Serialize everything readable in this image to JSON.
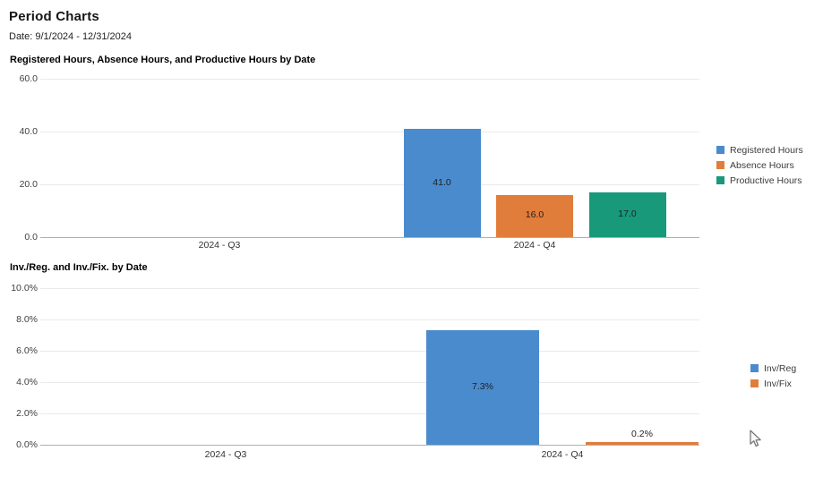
{
  "page": {
    "title": "Period Charts",
    "date_label": "Date: 9/1/2024 - 12/31/2024"
  },
  "cursor": {
    "icon": "arrow-pointer-icon"
  },
  "chart_data": [
    {
      "type": "bar",
      "title": "Registered Hours, Absence Hours, and Productive Hours by Date",
      "categories": [
        "2024 - Q3",
        "2024 - Q4"
      ],
      "series": [
        {
          "name": "Registered Hours",
          "color": "#4a8bce",
          "values": [
            0,
            41.0
          ],
          "labels": [
            "",
            "41.0"
          ]
        },
        {
          "name": "Absence Hours",
          "color": "#e17d3b",
          "values": [
            0,
            16.0
          ],
          "labels": [
            "",
            "16.0"
          ]
        },
        {
          "name": "Productive Hours",
          "color": "#17997a",
          "values": [
            0,
            17.0
          ],
          "labels": [
            "",
            "17.0"
          ]
        }
      ],
      "ylim": [
        0,
        60
      ],
      "yticks": [
        {
          "value": 0,
          "label": "0.0"
        },
        {
          "value": 20,
          "label": "20.0"
        },
        {
          "value": 40,
          "label": "40.0"
        },
        {
          "value": 60,
          "label": "60.0"
        }
      ],
      "grid": true,
      "legend_position": "right"
    },
    {
      "type": "bar",
      "title": "Inv./Reg. and Inv./Fix. by Date",
      "categories": [
        "2024 - Q3",
        "2024 - Q4"
      ],
      "series": [
        {
          "name": "Inv/Reg",
          "color": "#4a8bce",
          "values": [
            0,
            7.3
          ],
          "labels": [
            "",
            "7.3%"
          ]
        },
        {
          "name": "Inv/Fix",
          "color": "#e17d3b",
          "values": [
            0,
            0.2
          ],
          "labels": [
            "",
            "0.2%"
          ]
        }
      ],
      "ylim": [
        0,
        10
      ],
      "yticks": [
        {
          "value": 0,
          "label": "0.0%"
        },
        {
          "value": 2,
          "label": "2.0%"
        },
        {
          "value": 4,
          "label": "4.0%"
        },
        {
          "value": 6,
          "label": "6.0%"
        },
        {
          "value": 8,
          "label": "8.0%"
        },
        {
          "value": 10,
          "label": "10.0%"
        }
      ],
      "grid": true,
      "legend_position": "right"
    }
  ]
}
